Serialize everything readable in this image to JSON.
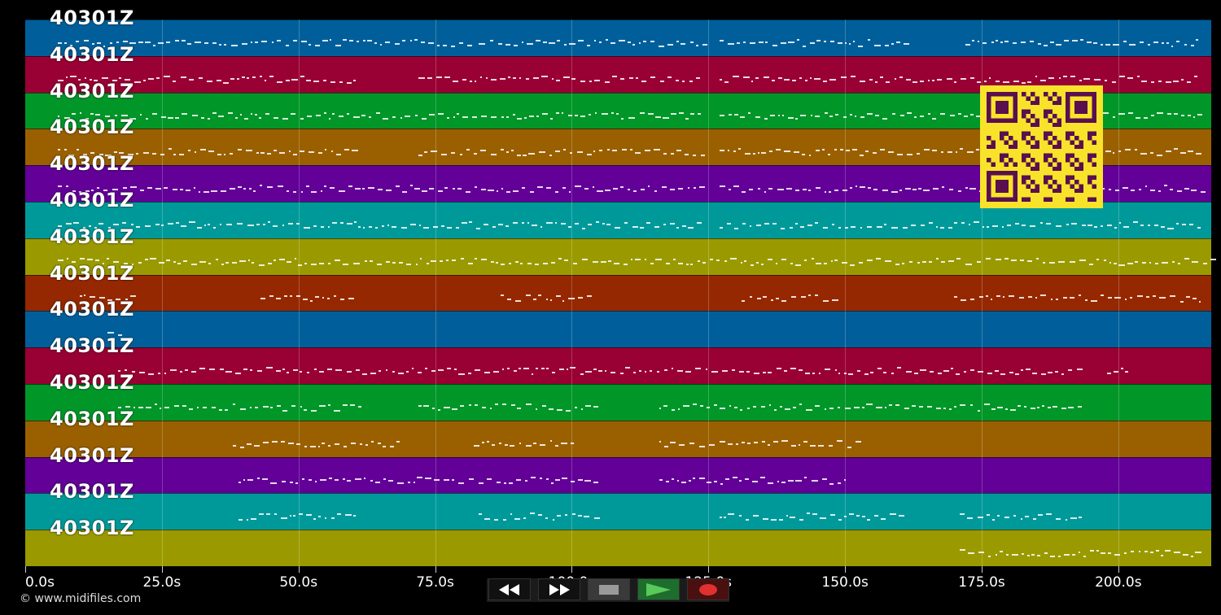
{
  "tracks": [
    {
      "label": "40301Z",
      "color": "#005f9a"
    },
    {
      "label": "40301Z",
      "color": "#990033"
    },
    {
      "label": "40301Z",
      "color": "#009628"
    },
    {
      "label": "40301Z",
      "color": "#9a6000"
    },
    {
      "label": "40301Z",
      "color": "#620097"
    },
    {
      "label": "40301Z",
      "color": "#00999a"
    },
    {
      "label": "40301Z",
      "color": "#9a9a00"
    },
    {
      "label": "40301Z",
      "color": "#952800"
    },
    {
      "label": "40301Z",
      "color": "#005f9a"
    },
    {
      "label": "40301Z",
      "color": "#990033"
    },
    {
      "label": "40301Z",
      "color": "#009628"
    },
    {
      "label": "40301Z",
      "color": "#9a6000"
    },
    {
      "label": "40301Z",
      "color": "#620097"
    },
    {
      "label": "40301Z",
      "color": "#00999a"
    },
    {
      "label": "40301Z",
      "color": "#9a9a00"
    }
  ],
  "timeline": {
    "max_seconds": 217,
    "ticks": [
      "0.0s",
      "25.0s",
      "50.0s",
      "75.0s",
      "100.0s",
      "125.0s",
      "150.0s",
      "175.0s",
      "200.0s"
    ],
    "tick_values": [
      0,
      25,
      50,
      75,
      100,
      125,
      150,
      175,
      200
    ]
  },
  "controls": [
    {
      "name": "rewind-button",
      "icon": "rewind-icon"
    },
    {
      "name": "fast-forward-button",
      "icon": "fast-forward-icon"
    },
    {
      "name": "stop-button",
      "icon": "stop-icon"
    },
    {
      "name": "play-button",
      "icon": "play-icon"
    },
    {
      "name": "record-button",
      "icon": "record-icon"
    }
  ],
  "footer": {
    "copyright": "© www.midifiles.com"
  },
  "qr": {
    "icon": "qr-code-icon",
    "color": "#f8e32a",
    "module_color": "#5a0f4e"
  }
}
